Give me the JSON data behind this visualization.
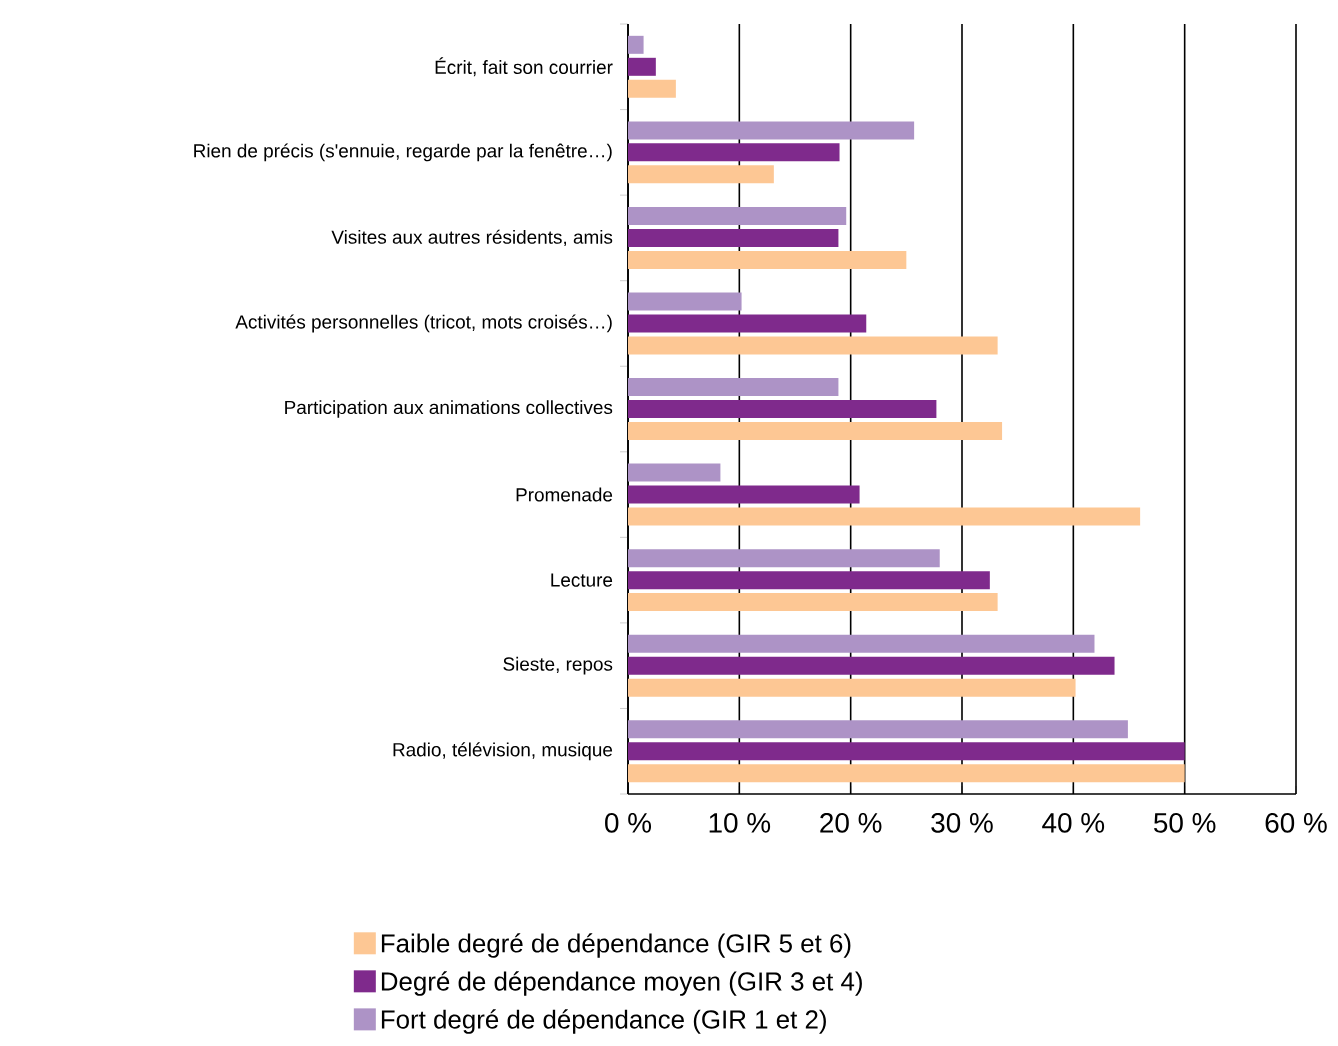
{
  "chart_data": {
    "type": "bar",
    "orientation": "horizontal",
    "categories": [
      "Écrit, fait son courrier",
      "Rien de précis (s'ennuie, regarde par la fenêtre…)",
      "Visites aux autres résidents, amis",
      "Activités personnelles (tricot, mots croisés…)",
      "Participation aux animations collectives",
      "Promenade",
      "Lecture",
      "Sieste, repos",
      "Radio, télévision, musique"
    ],
    "series": [
      {
        "name": "Faible degré de dépendance (GIR 5 et 6)",
        "color": "#fdc794",
        "values": [
          4.3,
          13.1,
          25.0,
          33.2,
          33.6,
          46.0,
          33.2,
          40.2,
          50.0
        ]
      },
      {
        "name": "Degré de dépendance moyen (GIR 3 et 4)",
        "color": "#7f2a8c",
        "values": [
          2.5,
          19.0,
          18.9,
          21.4,
          27.7,
          20.8,
          32.5,
          43.7,
          50.0
        ]
      },
      {
        "name": "Fort degré de dépendance (GIR 1 et 2)",
        "color": "#ad93c6",
        "values": [
          1.4,
          25.7,
          19.6,
          10.2,
          18.9,
          8.3,
          28.0,
          41.9,
          44.9
        ]
      }
    ],
    "xlim": [
      0,
      60
    ],
    "xticks": [
      {
        "value": 0,
        "label": "0 %"
      },
      {
        "value": 10,
        "label": "10 %"
      },
      {
        "value": 20,
        "label": "20 %"
      },
      {
        "value": 30,
        "label": "30 %"
      },
      {
        "value": 40,
        "label": "40 %"
      },
      {
        "value": 50,
        "label": "50 %"
      },
      {
        "value": 60,
        "label": "60 %"
      }
    ],
    "grid": "x",
    "legend": "bottom"
  }
}
